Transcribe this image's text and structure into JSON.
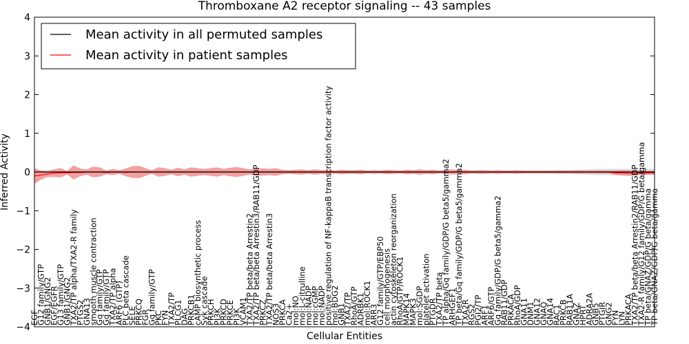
{
  "chart_data": {
    "type": "line",
    "title": "Thromboxane A2 receptor signaling -- 43 samples",
    "xlabel": "Cellular Entities",
    "ylabel": "Inferred Activity",
    "ylim": [
      -4,
      4
    ],
    "yticks": [
      -4,
      -3,
      -2,
      -1,
      0,
      1,
      2,
      3,
      4
    ],
    "ytick_labels": [
      "−4",
      "−3",
      "−2",
      "−1",
      "0",
      "1",
      "2",
      "3",
      "4"
    ],
    "grid": false,
    "legend": {
      "position": "top-left",
      "entries": [
        "Mean activity in all permuted samples",
        "Mean activity in patient samples"
      ]
    },
    "colors": {
      "permuted": "#000000",
      "patient": "#ff0000",
      "patient_band": "#f08080",
      "permuted_band": "#c8c8c8"
    },
    "categories": [
      "EGF",
      "G12 family/GTP",
      "GNB1/GNG2",
      "EGF/EGFR",
      "G13 family/GTP",
      "GNB1/GNG2",
      "TXA2/TP alpha/TXA2-R family",
      "PTGS2",
      "GNA13",
      "smooth muscle contraction",
      "Gq family/GTP",
      "Gq family/GTP",
      "TXA2/TP alpha",
      "ARF6 (GTP)",
      "PLC beta cascade",
      "SELE",
      "PRKCQ",
      "FGR",
      "Gq family/GTP",
      "PKC",
      "FYN",
      "TXA2/TP",
      "PLCG1",
      "DAG",
      "PRKCB1",
      "cAMP biosynthetic process",
      "Syk cascade",
      "PRKCH",
      "PI3K",
      "PRKCD",
      "PRKCE",
      "PI3K",
      "VCAM1",
      "TXA2/TP beta/beta Arrestin2",
      "TXA2/TP beta/beta Arrestin3/RAB11/GDP",
      "PRKCZ",
      "TXA2/TP beta/beta Arrestin3",
      "NOS3",
      "PRKCA",
      "Ca2+",
      "mol:NO",
      "mol:L-citrulline",
      "mol:NADP",
      "mol:cGMP",
      "mol:NADP",
      "positive regulation of NF-kappaB transcription factor activity",
      "mol:BDG2",
      "GNB1",
      "TXA2/TP",
      "RhoA/GTP",
      "ADRBK1",
      "mol:ROCK1",
      "ARR3",
      "G12 family/GTP/EBP50",
      "cell morphogenesis",
      "actin cytoskeleton reorganization",
      "RhoA/GTP/ROCK1",
      "MAPK14",
      "MAPK3",
      "mol:SGDP",
      "platelet activation",
      "PTGDR",
      "TXA2/TP beta",
      "TP alpha/Gq family/GDP/G beta5/gamma2",
      "ARHGEF1",
      "TP beta/Gq family/GDP/G beta5/gamma2",
      "TXA2R",
      "RGS2",
      "PGI2/TP",
      "ARF1",
      "ARF6/GTP",
      "Gq family/GDP/G beta5/gamma2",
      "RAB11/GDP",
      "PRKACA",
      "RhoA/GDP",
      "GNA11",
      "DNM1",
      "GNA12",
      "GNAQ",
      "GNA14",
      "RAC1",
      "PRKCB",
      "RAB11A",
      "GNAZ",
      "HPRT",
      "ADRA2A",
      "GNB5",
      "PTGIR",
      "GNG2",
      "FYN",
      "LYN",
      "PRKACA",
      "TXA2/TP beta/beta Arrestin2/RAB11/GDP",
      "TXA2-R family/G12 family/GDP/G beta/gamma",
      "TP beta/GNAZ/GDP/G beta/gamma",
      "TP beta/GNAZ/GDP/G beta/gamma"
    ],
    "series": [
      {
        "name": "Mean activity in all permuted samples",
        "values": [
          0.0,
          0.0,
          0.0,
          0.0,
          0.0,
          0.0,
          0.0,
          0.0,
          0.0,
          0.0,
          0.0,
          0.0,
          0.0,
          0.0,
          0.0,
          0.0,
          0.0,
          0.0,
          0.0,
          0.0,
          0.0,
          0.0,
          0.0,
          0.0,
          0.0,
          0.0,
          0.0,
          0.0,
          0.0,
          0.0,
          0.0,
          0.0,
          0.0,
          0.0,
          0.0,
          0.0,
          0.0,
          0.0,
          0.0,
          0.0,
          0.0,
          0.0,
          0.0,
          0.0,
          0.0,
          0.0,
          0.0,
          0.0,
          0.0,
          0.0,
          0.0,
          0.0,
          0.0,
          0.0,
          0.0,
          0.0,
          0.0,
          0.0,
          0.0,
          0.0,
          0.0,
          0.0,
          0.0,
          0.0,
          0.0,
          0.0,
          0.0,
          0.0,
          0.0,
          0.0,
          0.0,
          0.0,
          0.0,
          0.0,
          0.0,
          0.0,
          0.0,
          0.0,
          0.0,
          0.0,
          0.0,
          0.0,
          0.0,
          0.0,
          0.0,
          0.0,
          0.0,
          0.0,
          0.0,
          0.0,
          0.0,
          0.0,
          0.0,
          0.0,
          0.0,
          0.0
        ],
        "spread": [
          0.03,
          0.03,
          0.03,
          0.03,
          0.03,
          0.03,
          0.03,
          0.03,
          0.03,
          0.03,
          0.03,
          0.03,
          0.03,
          0.03,
          0.03,
          0.03,
          0.03,
          0.03,
          0.03,
          0.03,
          0.03,
          0.03,
          0.03,
          0.03,
          0.03,
          0.03,
          0.03,
          0.03,
          0.03,
          0.03,
          0.03,
          0.03,
          0.03,
          0.03,
          0.03,
          0.03,
          0.03,
          0.03,
          0.03,
          0.03,
          0.03,
          0.03,
          0.03,
          0.03,
          0.03,
          0.03,
          0.03,
          0.03,
          0.03,
          0.03,
          0.03,
          0.03,
          0.03,
          0.03,
          0.03,
          0.03,
          0.03,
          0.03,
          0.03,
          0.03,
          0.03,
          0.03,
          0.03,
          0.03,
          0.03,
          0.03,
          0.03,
          0.03,
          0.03,
          0.03,
          0.03,
          0.03,
          0.03,
          0.03,
          0.03,
          0.03,
          0.03,
          0.03,
          0.03,
          0.03,
          0.05,
          0.05,
          0.05,
          0.06,
          0.06,
          0.07,
          0.08,
          0.08,
          0.08,
          0.08,
          0.08,
          0.08,
          0.08,
          0.08,
          0.08,
          0.08
        ]
      },
      {
        "name": "Mean activity in patient samples",
        "values": [
          -0.1,
          -0.08,
          -0.05,
          -0.03,
          -0.02,
          -0.02,
          -0.01,
          -0.01,
          0.0,
          0.0,
          0.0,
          -0.01,
          0.0,
          0.0,
          -0.01,
          0.0,
          0.0,
          0.0,
          0.0,
          0.0,
          0.0,
          0.0,
          0.0,
          0.0,
          0.0,
          0.0,
          0.0,
          0.0,
          0.0,
          0.0,
          0.0,
          0.0,
          0.0,
          0.0,
          0.0,
          0.0,
          0.0,
          0.0,
          0.0,
          0.0,
          0.0,
          0.0,
          0.0,
          0.0,
          0.0,
          0.0,
          0.0,
          0.0,
          0.0,
          0.0,
          0.0,
          0.0,
          0.0,
          0.0,
          0.0,
          0.0,
          0.0,
          0.0,
          0.0,
          0.0,
          0.0,
          0.0,
          0.0,
          0.0,
          0.0,
          0.0,
          0.0,
          0.0,
          0.0,
          0.0,
          0.0,
          0.0,
          0.0,
          0.0,
          0.0,
          0.0,
          0.0,
          0.0,
          0.0,
          0.0,
          0.0,
          0.0,
          0.0,
          0.0,
          0.0,
          0.0,
          0.0,
          0.0,
          0.0,
          -0.02,
          -0.02,
          -0.03,
          -0.03,
          -0.02,
          -0.02,
          -0.02
        ],
        "spread": [
          0.2,
          0.12,
          0.08,
          0.1,
          0.12,
          0.05,
          0.18,
          0.1,
          0.07,
          0.14,
          0.12,
          0.05,
          0.08,
          0.05,
          0.1,
          0.15,
          0.16,
          0.1,
          0.05,
          0.12,
          0.1,
          0.06,
          0.11,
          0.07,
          0.12,
          0.1,
          0.08,
          0.1,
          0.12,
          0.08,
          0.11,
          0.13,
          0.1,
          0.07,
          0.1,
          0.09,
          0.08,
          0.1,
          0.06,
          0.05,
          0.06,
          0.07,
          0.05,
          0.07,
          0.05,
          0.06,
          0.04,
          0.06,
          0.05,
          0.05,
          0.06,
          0.04,
          0.05,
          0.04,
          0.06,
          0.05,
          0.04,
          0.06,
          0.05,
          0.07,
          0.05,
          0.06,
          0.04,
          0.05,
          0.07,
          0.05,
          0.06,
          0.04,
          0.05,
          0.05,
          0.04,
          0.05,
          0.04,
          0.04,
          0.05,
          0.04,
          0.04,
          0.04,
          0.04,
          0.04,
          0.04,
          0.04,
          0.04,
          0.04,
          0.04,
          0.04,
          0.04,
          0.04,
          0.04,
          0.06,
          0.07,
          0.07,
          0.06,
          0.05,
          0.05,
          0.05
        ]
      }
    ]
  }
}
